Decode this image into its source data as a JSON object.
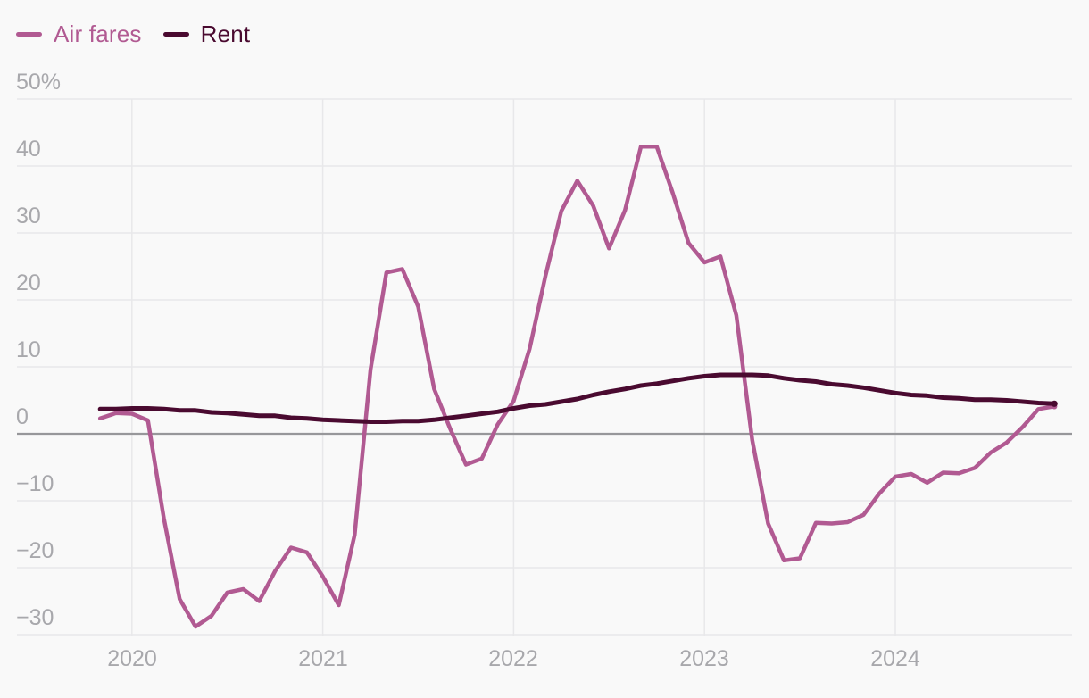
{
  "legend": {
    "items": [
      {
        "id": "air-fares",
        "label": "Air fares",
        "color": "#b15a92"
      },
      {
        "id": "rent",
        "label": "Rent",
        "color": "#4a0a30"
      }
    ]
  },
  "colors": {
    "background": "#f9f9f9",
    "gridline": "#e8e8ea",
    "zero_line": "#97979a",
    "axis_text": "#a8a8ac",
    "air_fares_line": "#b15a92",
    "rent_line": "#4a0a30"
  },
  "chart_data": {
    "type": "line",
    "title": "",
    "unit": "percent change year over year",
    "x_start_month": "2019-11",
    "x_end_month": "2024-11",
    "months_per_point": 1,
    "grid": true,
    "legend_position": "top-left",
    "ylim": [
      -33,
      52
    ],
    "y_ticks": [
      {
        "label": "50%",
        "value": 50,
        "baseline": false
      },
      {
        "label": "40",
        "value": 40,
        "baseline": false
      },
      {
        "label": "30",
        "value": 30,
        "baseline": false
      },
      {
        "label": "20",
        "value": 20,
        "baseline": false
      },
      {
        "label": "10",
        "value": 10,
        "baseline": false
      },
      {
        "label": "0",
        "value": 0,
        "baseline": true
      },
      {
        "label": "−10",
        "value": -10,
        "baseline": false
      },
      {
        "label": "−20",
        "value": -20,
        "baseline": false
      },
      {
        "label": "−30",
        "value": -30,
        "baseline": false
      }
    ],
    "x_ticks": [
      {
        "label": "2020",
        "month_index": 2
      },
      {
        "label": "2021",
        "month_index": 14
      },
      {
        "label": "2022",
        "month_index": 26
      },
      {
        "label": "2023",
        "month_index": 38
      },
      {
        "label": "2024",
        "month_index": 50
      }
    ],
    "series": [
      {
        "name": "Air fares",
        "color": "#b15a92",
        "line_width": 4.5,
        "values": [
          2.3,
          3.1,
          3.0,
          2.0,
          -12.6,
          -24.7,
          -28.8,
          -27.2,
          -23.7,
          -23.2,
          -25.0,
          -20.5,
          -17.0,
          -17.7,
          -21.3,
          -25.6,
          -15.1,
          9.6,
          24.1,
          24.6,
          19.0,
          6.7,
          0.8,
          -4.6,
          -3.7,
          1.4,
          4.9,
          12.7,
          23.6,
          33.3,
          37.8,
          34.1,
          27.7,
          33.4,
          42.9,
          42.9,
          36.0,
          28.5,
          25.6,
          26.5,
          17.7,
          -0.9,
          -13.4,
          -18.9,
          -18.6,
          -13.3,
          -13.4,
          -13.2,
          -12.1,
          -8.9,
          -6.4,
          -6.0,
          -7.3,
          -5.8,
          -5.9,
          -5.1,
          -2.8,
          -1.3,
          1.0,
          3.7,
          4.1
        ]
      },
      {
        "name": "Rent",
        "color": "#4a0a30",
        "line_width": 5,
        "values": [
          3.7,
          3.7,
          3.8,
          3.8,
          3.7,
          3.5,
          3.5,
          3.2,
          3.1,
          2.9,
          2.7,
          2.7,
          2.4,
          2.3,
          2.1,
          2.0,
          1.9,
          1.8,
          1.8,
          1.9,
          1.9,
          2.1,
          2.4,
          2.7,
          3.0,
          3.3,
          3.8,
          4.2,
          4.4,
          4.8,
          5.2,
          5.8,
          6.3,
          6.7,
          7.2,
          7.5,
          7.9,
          8.3,
          8.6,
          8.8,
          8.8,
          8.8,
          8.7,
          8.3,
          8.0,
          7.8,
          7.4,
          7.2,
          6.9,
          6.5,
          6.1,
          5.8,
          5.7,
          5.4,
          5.3,
          5.1,
          5.1,
          5.0,
          4.8,
          4.6,
          4.5
        ]
      }
    ]
  }
}
